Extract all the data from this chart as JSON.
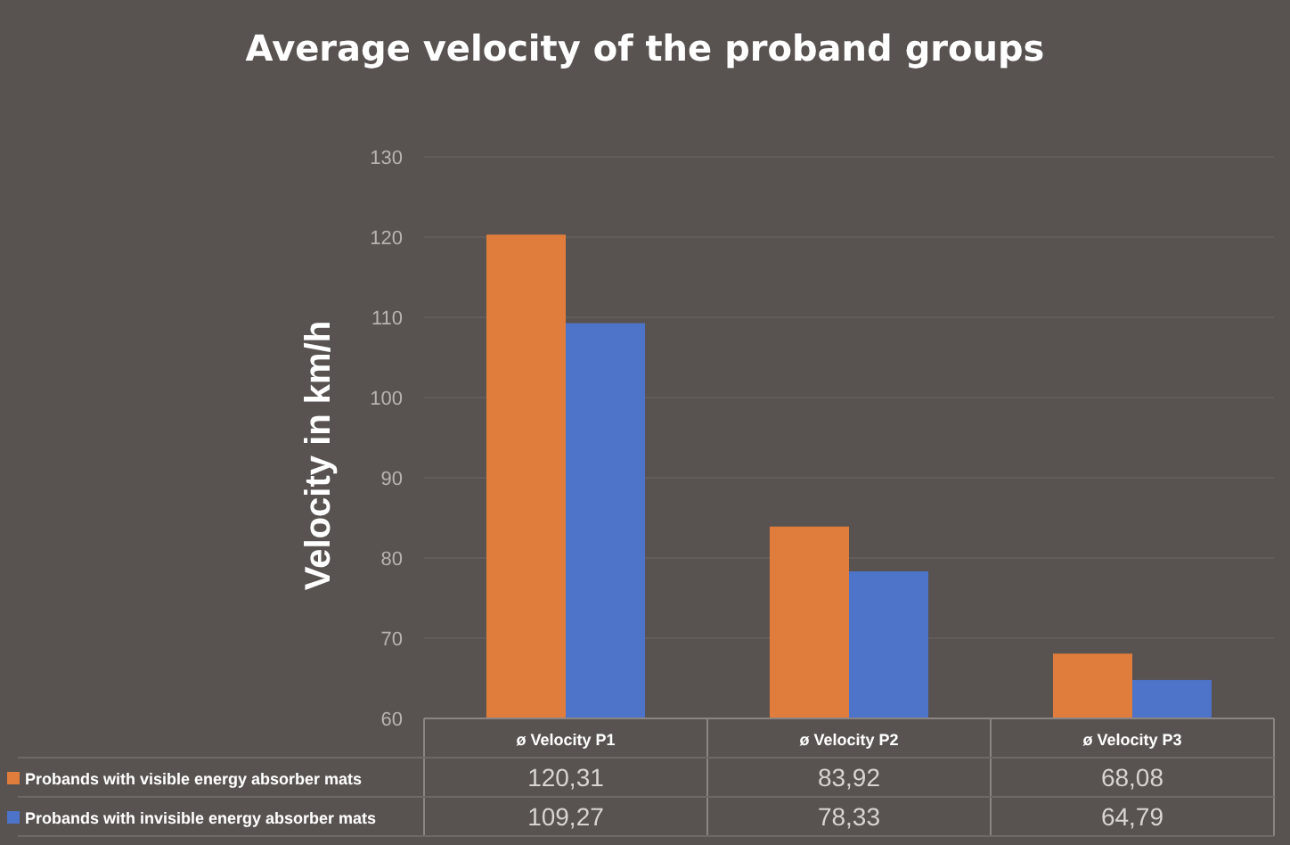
{
  "chart_data": {
    "type": "bar",
    "title": "Average velocity of the proband groups",
    "ylabel": "Velocity in km/h",
    "categories": [
      "ø Velocity P1",
      "ø Velocity P2",
      "ø Velocity P3"
    ],
    "series": [
      {
        "name": "Probands with visible energy absorber mats",
        "color": "#e07d3c",
        "values": [
          120.31,
          83.92,
          68.08
        ],
        "value_labels": [
          "120,31",
          "83,92",
          "68,08"
        ]
      },
      {
        "name": "Probands with invisible energy absorber mats",
        "color": "#4d74c8",
        "values": [
          109.27,
          78.33,
          64.79
        ],
        "value_labels": [
          "109,27",
          "78,33",
          "64,79"
        ]
      }
    ],
    "ylim": [
      60,
      130
    ],
    "yticks": [
      60,
      70,
      80,
      90,
      100,
      110,
      120,
      130
    ],
    "grid": "y",
    "legend": "bottom left"
  }
}
